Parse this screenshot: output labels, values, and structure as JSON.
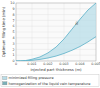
{
  "chart_data": {
    "type": "area",
    "xlabel": "injected part thickness (m)",
    "ylabel": "Optimum filling time (min)",
    "x": [
      0.0,
      0.0003,
      0.0006,
      0.001,
      0.0015,
      0.002,
      0.0025,
      0.003,
      0.0035,
      0.004,
      0.0045,
      0.005
    ],
    "series": [
      {
        "name": "minimized filling pressure",
        "color": "#b8dde8",
        "values": [
          0.0,
          0.01,
          0.04,
          0.12,
          0.28,
          0.52,
          0.85,
          1.3,
          1.85,
          2.5,
          3.3,
          4.2
        ]
      },
      {
        "name": "homogenization of the liquid vein temperature",
        "color": "#7ab0b8",
        "values": [
          0.0,
          0.02,
          0.08,
          0.3,
          0.7,
          1.4,
          2.4,
          3.8,
          5.5,
          7.2,
          8.8,
          10.0
        ]
      }
    ],
    "color": "#5ab0c8",
    "xlim": [
      0,
      0.005
    ],
    "ylim": [
      0,
      10
    ],
    "xticks": [
      0,
      0.001,
      0.002,
      0.003,
      0.004,
      0.005
    ],
    "yticks": [
      0,
      1,
      2,
      3,
      4,
      5,
      6,
      7,
      8,
      9,
      10
    ],
    "annotations": [
      {
        "text": "B",
        "x": 0.0037,
        "y": 6.2
      }
    ],
    "grid": true,
    "legend": "bottom"
  }
}
